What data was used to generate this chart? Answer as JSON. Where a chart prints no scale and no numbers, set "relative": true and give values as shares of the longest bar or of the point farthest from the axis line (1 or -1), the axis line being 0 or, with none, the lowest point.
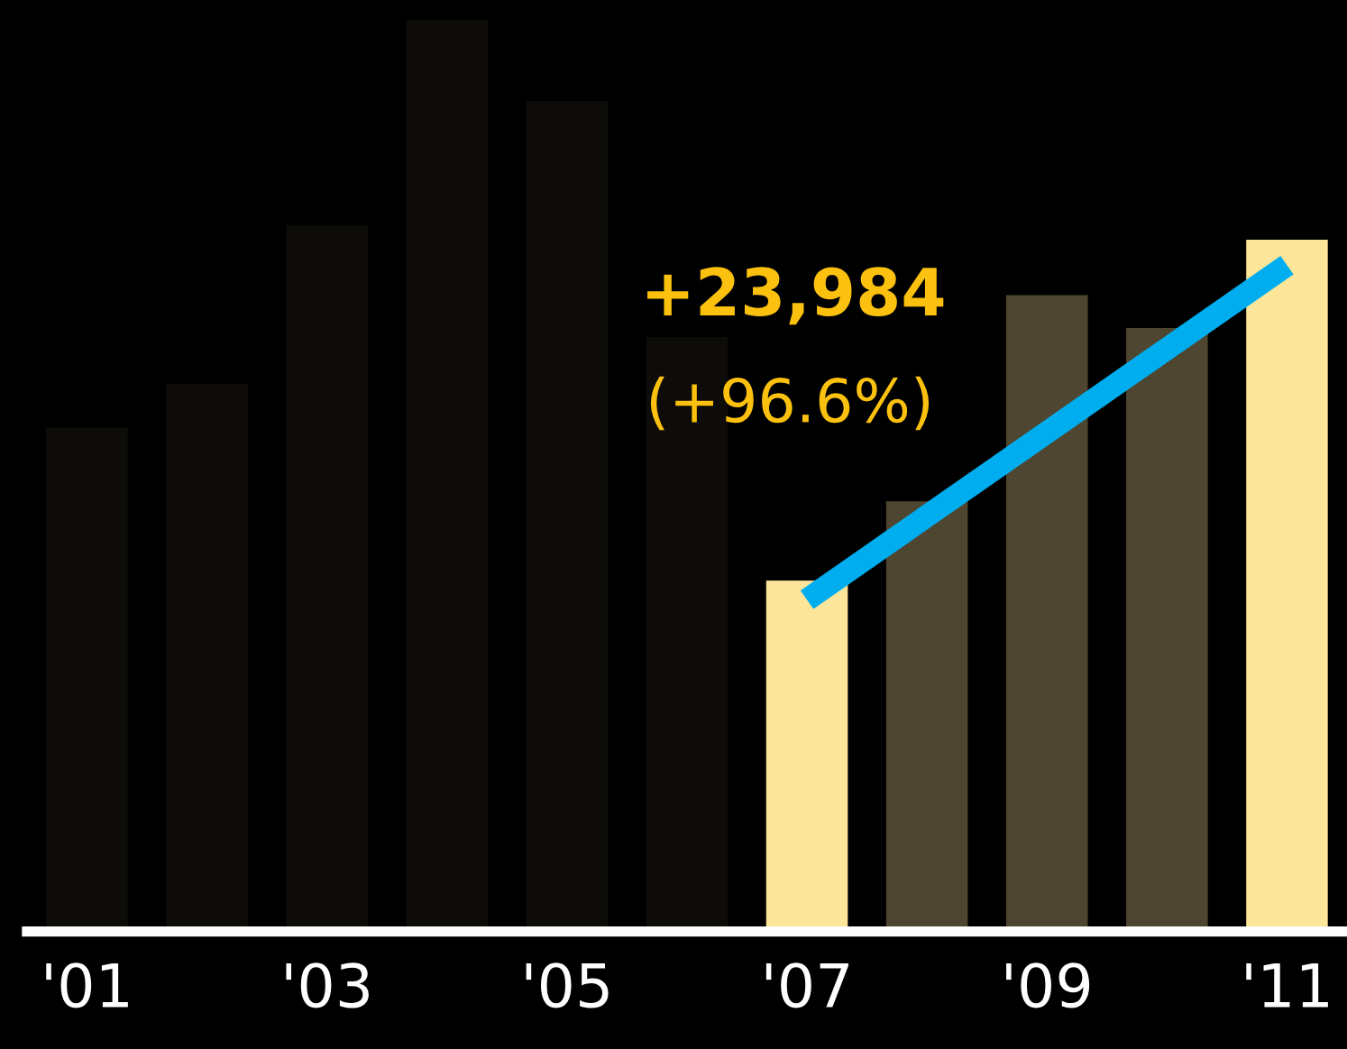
{
  "chart_data": {
    "type": "bar",
    "relative": true,
    "categories": [
      "'01",
      null,
      "'03",
      null,
      "'05",
      null,
      "'07",
      null,
      "'09",
      null,
      "'11"
    ],
    "series": [
      {
        "colors": [
          "#0d0c08",
          "#0d0c08",
          "#0d0c08",
          "#0d0c08",
          "#0d0c08",
          "#0d0c08",
          "#fde59a",
          "#4e4630",
          "#4e4630",
          "#4e4630",
          "#fde59a"
        ],
        "values": [
          0.553,
          0.601,
          0.775,
          1,
          0.911,
          0.652,
          0.385,
          0.472,
          0.698,
          0.662,
          0.759
        ]
      },
      {
        "type": "line",
        "x": [
          "'07",
          "'11"
        ],
        "values": [
          0.364,
          0.731
        ],
        "color": "#00aeef"
      }
    ],
    "annotations": [
      "+23,984",
      "(+96.6%)"
    ],
    "legend": false,
    "grid": false
  }
}
